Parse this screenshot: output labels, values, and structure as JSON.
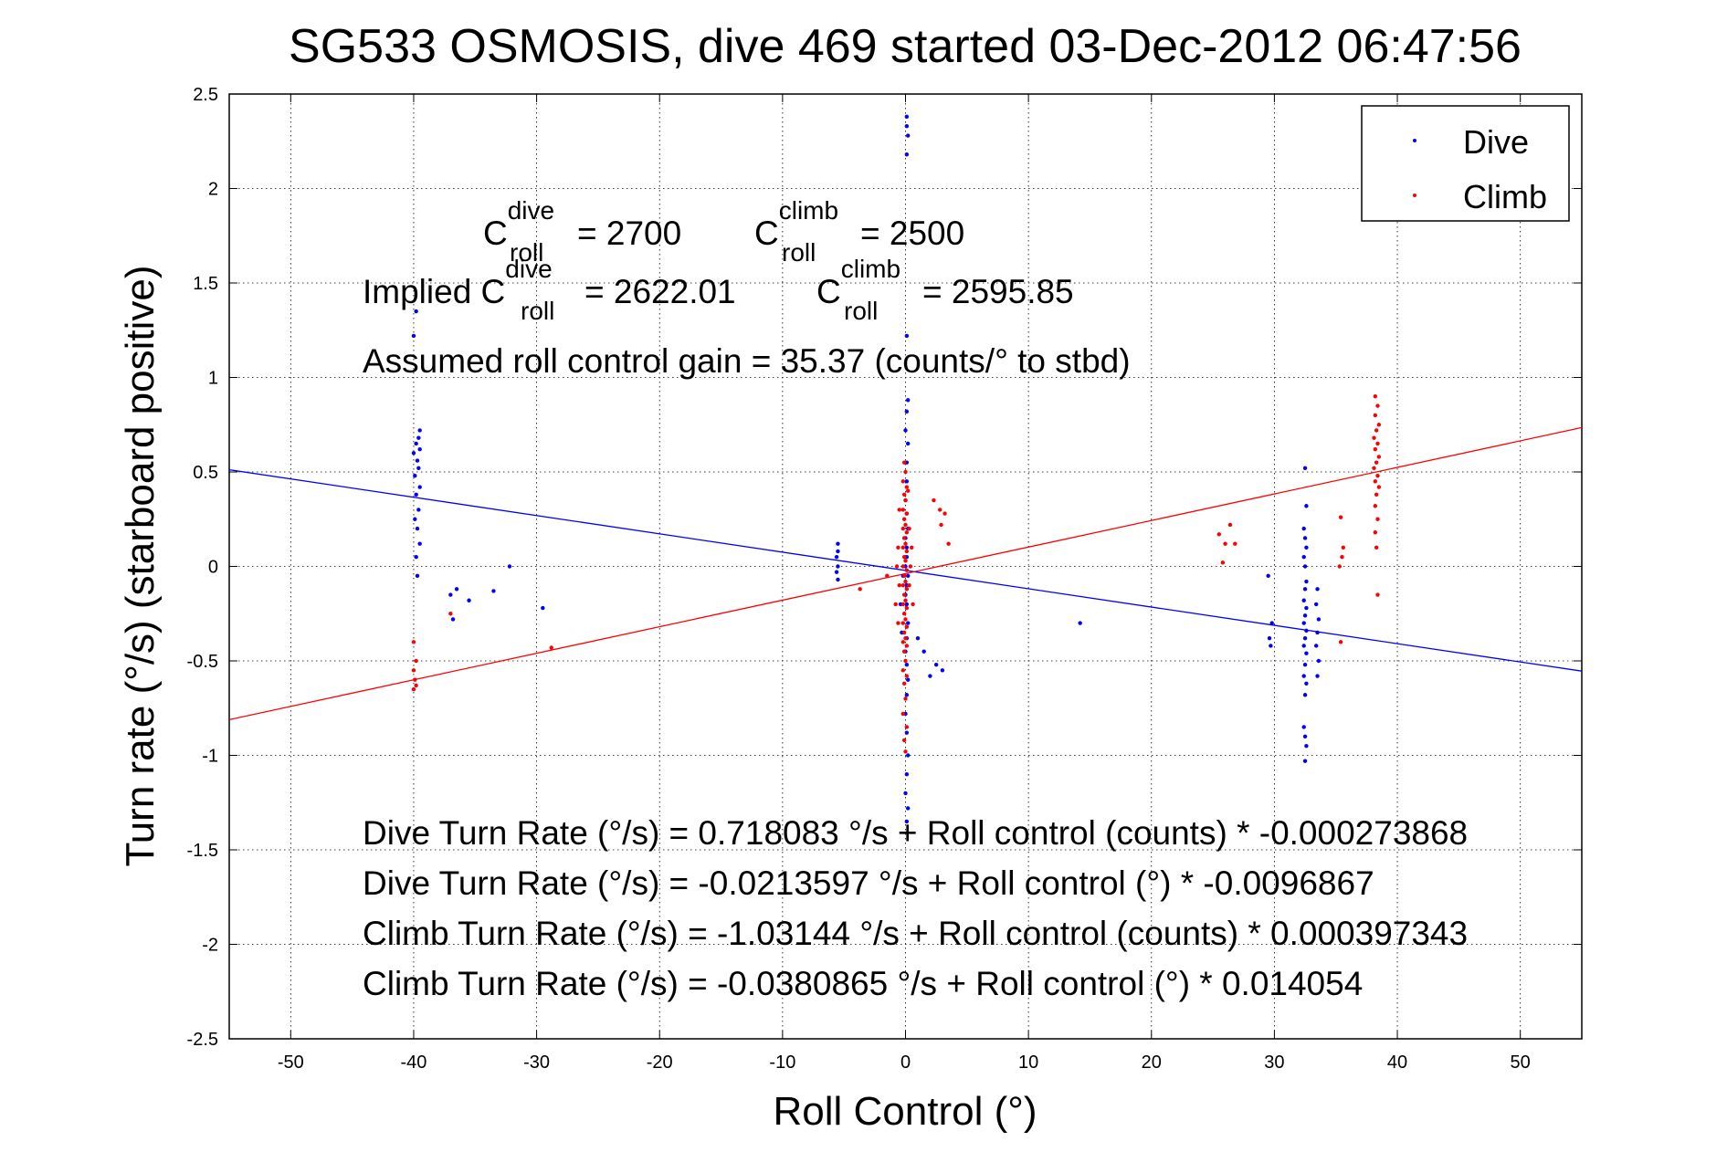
{
  "chart_data": {
    "type": "scatter",
    "title": "SG533 OSMOSIS, dive 469 started 03-Dec-2012 06:47:56",
    "xlabel": "Roll Control (°)",
    "ylabel": "Turn rate (°/s)  (starboard positive)",
    "xlim": [
      -55,
      55
    ],
    "ylim": [
      -2.5,
      2.5
    ],
    "xticks": [
      -50,
      -40,
      -30,
      -20,
      -10,
      0,
      10,
      20,
      30,
      40,
      50
    ],
    "yticks": [
      -2.5,
      -2,
      -1.5,
      -1,
      -0.5,
      0,
      0.5,
      1,
      1.5,
      2,
      2.5
    ],
    "grid": true,
    "legend_position": "top-right",
    "series": [
      {
        "name": "Dive",
        "color": "#0000ff",
        "points": [
          [
            0.1,
            2.38
          ],
          [
            0.1,
            2.33
          ],
          [
            0.2,
            2.28
          ],
          [
            0.1,
            2.18
          ],
          [
            0.1,
            1.22
          ],
          [
            0.2,
            0.88
          ],
          [
            0.1,
            0.82
          ],
          [
            0.0,
            0.72
          ],
          [
            0.2,
            0.65
          ],
          [
            0.1,
            0.55
          ],
          [
            0.1,
            0.45
          ],
          [
            0.0,
            0.35
          ],
          [
            0.1,
            0.28
          ],
          [
            0.2,
            0.2
          ],
          [
            0.0,
            0.15
          ],
          [
            0.1,
            0.1
          ],
          [
            0.1,
            0.05
          ],
          [
            0.0,
            0.0
          ],
          [
            0.2,
            -0.05
          ],
          [
            0.1,
            -0.1
          ],
          [
            0.0,
            -0.15
          ],
          [
            0.1,
            -0.2
          ],
          [
            0.2,
            -0.3
          ],
          [
            0.1,
            -0.38
          ],
          [
            0.0,
            -0.45
          ],
          [
            0.1,
            -0.52
          ],
          [
            0.2,
            -0.6
          ],
          [
            0.1,
            -0.68
          ],
          [
            0.0,
            -0.78
          ],
          [
            0.1,
            -0.88
          ],
          [
            0.2,
            -1.0
          ],
          [
            0.1,
            -1.1
          ],
          [
            0.0,
            -1.2
          ],
          [
            0.2,
            -1.28
          ],
          [
            0.1,
            -1.35
          ],
          [
            -0.4,
            -0.2
          ],
          [
            -0.3,
            -0.35
          ],
          [
            -0.2,
            -0.05
          ],
          [
            1.0,
            -0.38
          ],
          [
            1.5,
            -0.45
          ],
          [
            2.0,
            -0.58
          ],
          [
            3.0,
            -0.55
          ],
          [
            2.5,
            -0.52
          ],
          [
            -5.5,
            0.12
          ],
          [
            -5.5,
            0.08
          ],
          [
            -5.6,
            0.05
          ],
          [
            -5.5,
            0.0
          ],
          [
            -5.6,
            -0.03
          ],
          [
            -5.5,
            -0.07
          ],
          [
            -39.8,
            1.35
          ],
          [
            -40.0,
            1.22
          ],
          [
            -39.5,
            0.72
          ],
          [
            -39.6,
            0.68
          ],
          [
            -39.8,
            0.65
          ],
          [
            -39.5,
            0.62
          ],
          [
            -40.0,
            0.6
          ],
          [
            -39.7,
            0.56
          ],
          [
            -39.6,
            0.52
          ],
          [
            -39.9,
            0.48
          ],
          [
            -39.5,
            0.42
          ],
          [
            -39.8,
            0.38
          ],
          [
            -39.6,
            0.3
          ],
          [
            -39.9,
            0.25
          ],
          [
            -39.7,
            0.2
          ],
          [
            -39.5,
            0.12
          ],
          [
            -39.8,
            0.05
          ],
          [
            -39.7,
            -0.05
          ],
          [
            -37.0,
            -0.15
          ],
          [
            -36.8,
            -0.28
          ],
          [
            -36.5,
            -0.12
          ],
          [
            -35.5,
            -0.18
          ],
          [
            -33.5,
            -0.13
          ],
          [
            -32.2,
            0.0
          ],
          [
            -29.5,
            -0.22
          ],
          [
            14.2,
            -0.3
          ],
          [
            29.5,
            -0.05
          ],
          [
            29.8,
            -0.3
          ],
          [
            29.6,
            -0.38
          ],
          [
            29.7,
            -0.42
          ],
          [
            32.5,
            0.52
          ],
          [
            32.6,
            0.32
          ],
          [
            32.4,
            0.2
          ],
          [
            32.5,
            0.15
          ],
          [
            32.6,
            0.1
          ],
          [
            32.4,
            0.05
          ],
          [
            32.5,
            0.0
          ],
          [
            32.6,
            -0.08
          ],
          [
            32.5,
            -0.12
          ],
          [
            32.4,
            -0.18
          ],
          [
            32.6,
            -0.22
          ],
          [
            32.5,
            -0.26
          ],
          [
            32.4,
            -0.3
          ],
          [
            32.6,
            -0.34
          ],
          [
            32.5,
            -0.38
          ],
          [
            32.4,
            -0.42
          ],
          [
            32.6,
            -0.46
          ],
          [
            32.5,
            -0.52
          ],
          [
            32.4,
            -0.58
          ],
          [
            32.6,
            -0.62
          ],
          [
            32.5,
            -0.68
          ],
          [
            32.4,
            -0.85
          ],
          [
            32.5,
            -0.9
          ],
          [
            32.6,
            -0.95
          ],
          [
            32.5,
            -1.03
          ],
          [
            33.5,
            -0.12
          ],
          [
            33.4,
            -0.2
          ],
          [
            33.6,
            -0.28
          ],
          [
            33.5,
            -0.35
          ],
          [
            33.4,
            -0.42
          ],
          [
            33.6,
            -0.5
          ],
          [
            33.5,
            -0.58
          ]
        ]
      },
      {
        "name": "Climb",
        "color": "#ff0000",
        "points": [
          [
            -0.1,
            0.55
          ],
          [
            0.0,
            0.5
          ],
          [
            -0.2,
            0.45
          ],
          [
            0.1,
            0.42
          ],
          [
            -0.1,
            0.38
          ],
          [
            0.0,
            0.35
          ],
          [
            -0.2,
            0.3
          ],
          [
            0.1,
            0.28
          ],
          [
            -0.1,
            0.25
          ],
          [
            0.0,
            0.22
          ],
          [
            -0.2,
            0.2
          ],
          [
            0.1,
            0.18
          ],
          [
            -0.1,
            0.15
          ],
          [
            0.0,
            0.12
          ],
          [
            -0.2,
            0.1
          ],
          [
            0.1,
            0.08
          ],
          [
            -0.1,
            0.05
          ],
          [
            0.0,
            0.03
          ],
          [
            -0.2,
            0.0
          ],
          [
            0.1,
            -0.02
          ],
          [
            -0.1,
            -0.05
          ],
          [
            0.0,
            -0.08
          ],
          [
            -0.2,
            -0.1
          ],
          [
            0.1,
            -0.12
          ],
          [
            -0.1,
            -0.15
          ],
          [
            0.0,
            -0.18
          ],
          [
            -0.2,
            -0.2
          ],
          [
            0.1,
            -0.22
          ],
          [
            -0.1,
            -0.25
          ],
          [
            0.0,
            -0.28
          ],
          [
            -0.2,
            -0.3
          ],
          [
            0.1,
            -0.32
          ],
          [
            -0.1,
            -0.35
          ],
          [
            0.0,
            -0.38
          ],
          [
            -0.2,
            -0.4
          ],
          [
            0.1,
            -0.42
          ],
          [
            -0.1,
            -0.45
          ],
          [
            0.0,
            -0.5
          ],
          [
            -0.2,
            -0.55
          ],
          [
            0.1,
            -0.58
          ],
          [
            -0.1,
            -0.62
          ],
          [
            0.0,
            -0.7
          ],
          [
            -0.2,
            -0.78
          ],
          [
            0.1,
            -0.85
          ],
          [
            -0.1,
            -0.92
          ],
          [
            0.0,
            -0.98
          ],
          [
            0.2,
            0.4
          ],
          [
            0.3,
            0.2
          ],
          [
            0.4,
            0.0
          ],
          [
            0.3,
            -0.1
          ],
          [
            -0.5,
            0.3
          ],
          [
            -0.6,
            0.1
          ],
          [
            -0.5,
            -0.1
          ],
          [
            -0.7,
            0.0
          ],
          [
            -0.8,
            -0.2
          ],
          [
            -0.6,
            -0.3
          ],
          [
            0.5,
            0.1
          ],
          [
            0.6,
            -0.2
          ],
          [
            2.3,
            0.35
          ],
          [
            2.8,
            0.3
          ],
          [
            3.2,
            0.28
          ],
          [
            2.9,
            0.22
          ],
          [
            3.5,
            0.12
          ],
          [
            -1.5,
            -0.05
          ],
          [
            -3.7,
            -0.12
          ],
          [
            -40.0,
            -0.4
          ],
          [
            -39.8,
            -0.5
          ],
          [
            -40.0,
            -0.55
          ],
          [
            -39.9,
            -0.6
          ],
          [
            -40.0,
            -0.65
          ],
          [
            -39.8,
            -0.63
          ],
          [
            -37.0,
            -0.25
          ],
          [
            -28.8,
            -0.43
          ],
          [
            25.5,
            0.17
          ],
          [
            26.4,
            0.22
          ],
          [
            26.0,
            0.12
          ],
          [
            26.8,
            0.12
          ],
          [
            25.8,
            0.02
          ],
          [
            35.4,
            0.26
          ],
          [
            35.6,
            0.1
          ],
          [
            35.5,
            0.05
          ],
          [
            35.3,
            0.0
          ],
          [
            35.4,
            -0.4
          ],
          [
            38.2,
            0.9
          ],
          [
            38.4,
            0.85
          ],
          [
            38.2,
            0.8
          ],
          [
            38.5,
            0.75
          ],
          [
            38.3,
            0.72
          ],
          [
            38.1,
            0.68
          ],
          [
            38.4,
            0.65
          ],
          [
            38.2,
            0.62
          ],
          [
            38.5,
            0.58
          ],
          [
            38.3,
            0.55
          ],
          [
            38.1,
            0.52
          ],
          [
            38.4,
            0.48
          ],
          [
            38.2,
            0.45
          ],
          [
            38.5,
            0.42
          ],
          [
            38.3,
            0.38
          ],
          [
            38.2,
            0.32
          ],
          [
            38.4,
            0.25
          ],
          [
            38.2,
            0.18
          ],
          [
            38.3,
            0.1
          ],
          [
            38.4,
            -0.15
          ]
        ]
      }
    ],
    "fit_lines": [
      {
        "series": "Dive",
        "color": "#0000ff",
        "intercept": -0.0213597,
        "slope": -0.0096867
      },
      {
        "series": "Climb",
        "color": "#ff0000",
        "intercept": -0.0380865,
        "slope": 0.014054
      }
    ],
    "annotations": {
      "c_dive_main": "C",
      "c_dive_sup": "dive",
      "c_dive_sub": "roll",
      "c_dive_value": "= 2700",
      "c_climb_main": "C",
      "c_climb_sup": "climb",
      "c_climb_sub": "roll",
      "c_climb_value": "= 2500",
      "implied_dive_prefix": "Implied C",
      "implied_dive_sup": "dive",
      "implied_dive_sub": "roll",
      "implied_dive_value": "= 2622.01",
      "implied_climb_main": "C",
      "implied_climb_sup": "climb",
      "implied_climb_sub": "roll",
      "implied_climb_value": "= 2595.85",
      "gain": "Assumed roll control gain = 35.37 (counts/° to stbd)",
      "eq1": "Dive Turn Rate (°/s) = 0.718083 °/s + Roll control (counts) * -0.000273868",
      "eq2": "Dive Turn Rate (°/s) = -0.0213597 °/s + Roll control (°) * -0.0096867",
      "eq3": "Climb Turn Rate (°/s) = -1.03144 °/s + Roll control (counts) * 0.000397343",
      "eq4": "Climb Turn Rate (°/s) = -0.0380865 °/s + Roll control (°) * 0.014054"
    }
  }
}
